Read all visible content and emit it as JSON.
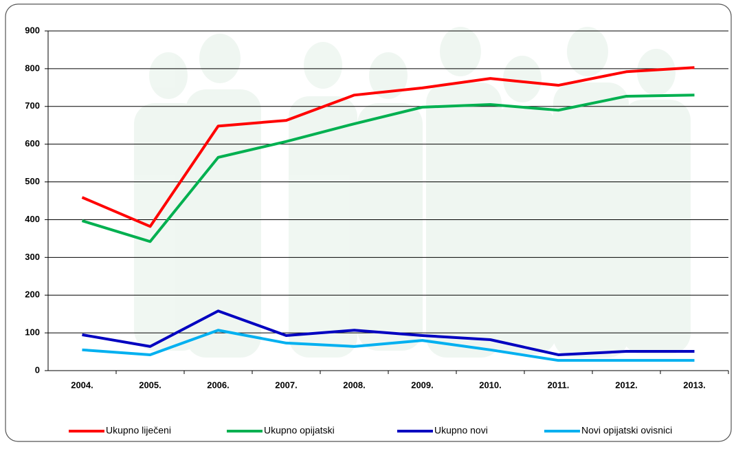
{
  "chart_data": {
    "type": "line",
    "categories": [
      "2004.",
      "2005.",
      "2006.",
      "2007.",
      "2008.",
      "2009.",
      "2010.",
      "2011.",
      "2012.",
      "2013."
    ],
    "series": [
      {
        "name": "Ukupno liječeni",
        "color": "#ff0000",
        "values": [
          459,
          382,
          648,
          663,
          730,
          749,
          774,
          756,
          792,
          803
        ]
      },
      {
        "name": "Ukupno opijatski",
        "color": "#00b050",
        "values": [
          397,
          342,
          565,
          607,
          654,
          698,
          705,
          690,
          727,
          730
        ]
      },
      {
        "name": "Ukupno novi",
        "color": "#0000c0",
        "values": [
          95,
          64,
          158,
          93,
          107,
          93,
          82,
          42,
          51,
          51
        ]
      },
      {
        "name": "Novi opijatski ovisnici",
        "color": "#00b0f0",
        "values": [
          55,
          42,
          107,
          73,
          64,
          80,
          55,
          27,
          27,
          27
        ]
      }
    ],
    "ylim": [
      0,
      900
    ],
    "yticks": [
      0,
      100,
      200,
      300,
      400,
      500,
      600,
      700,
      800,
      900
    ],
    "grid": true,
    "legend": "bottom"
  }
}
